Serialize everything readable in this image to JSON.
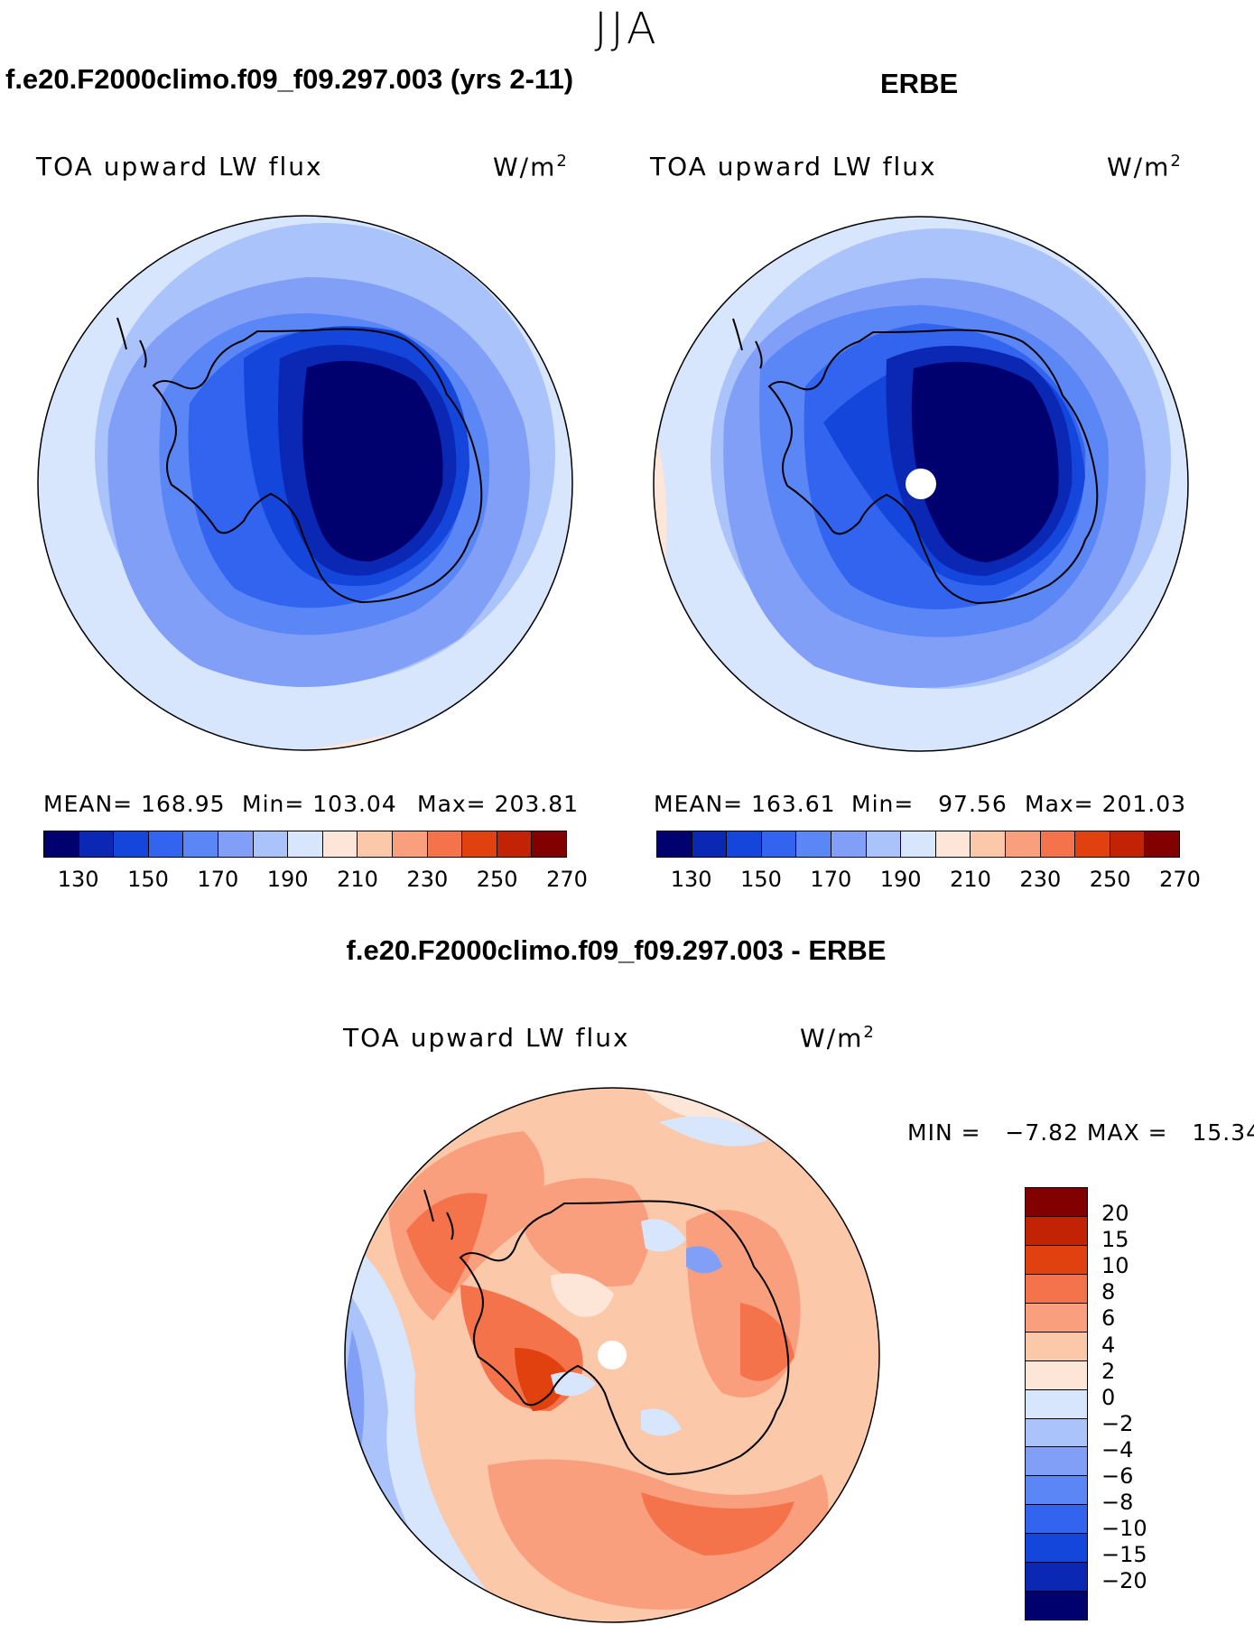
{
  "page_title": "JJA",
  "panel_left": {
    "case_title": "f.e20.F2000climo.f09_f09.297.003 (yrs 2-11)",
    "field_label": "TOA upward LW flux",
    "units": "W/m",
    "units_sup": "2",
    "mean_label": "MEAN=",
    "mean_value": "168.95",
    "min_label": "Min=",
    "min_value": "103.04",
    "max_label": "Max=",
    "max_value": "203.81"
  },
  "panel_right": {
    "case_title": "ERBE",
    "field_label": "TOA upward LW flux",
    "units": "W/m",
    "units_sup": "2",
    "mean_label": "MEAN=",
    "mean_value": "163.61",
    "min_label": "Min=",
    "min_value": "97.56",
    "max_label": "Max=",
    "max_value": "201.03"
  },
  "panel_diff": {
    "case_title": "f.e20.F2000climo.f09_f09.297.003 - ERBE",
    "field_label": "TOA upward LW flux",
    "units": "W/m",
    "units_sup": "2",
    "minmax_text": "MIN =   −7.82 MAX =   15.34"
  },
  "colorbar_abs": {
    "ticks": [
      "130",
      "150",
      "170",
      "190",
      "210",
      "230",
      "250",
      "270"
    ],
    "colors": [
      "#00006e",
      "#0a28b4",
      "#1446dc",
      "#3264f0",
      "#5a87f5",
      "#829ff8",
      "#aac3fa",
      "#d7e6fc",
      "#fde6d7",
      "#fcc8aa",
      "#fa9f7d",
      "#f5734b",
      "#e1410f",
      "#c32305",
      "#820000"
    ]
  },
  "colorbar_diff": {
    "ticks": [
      "20",
      "15",
      "10",
      "8",
      "6",
      "4",
      "2",
      "0",
      "−2",
      "−4",
      "−6",
      "−8",
      "−10",
      "−15",
      "−20"
    ],
    "colors": [
      "#820000",
      "#c32305",
      "#e1410f",
      "#f5734b",
      "#fa9f7d",
      "#fcc8aa",
      "#fde6d7",
      "#d7e6fc",
      "#aac3fa",
      "#829ff8",
      "#5a87f5",
      "#3264f0",
      "#1446dc",
      "#0a28b4",
      "#00006e"
    ]
  }
}
